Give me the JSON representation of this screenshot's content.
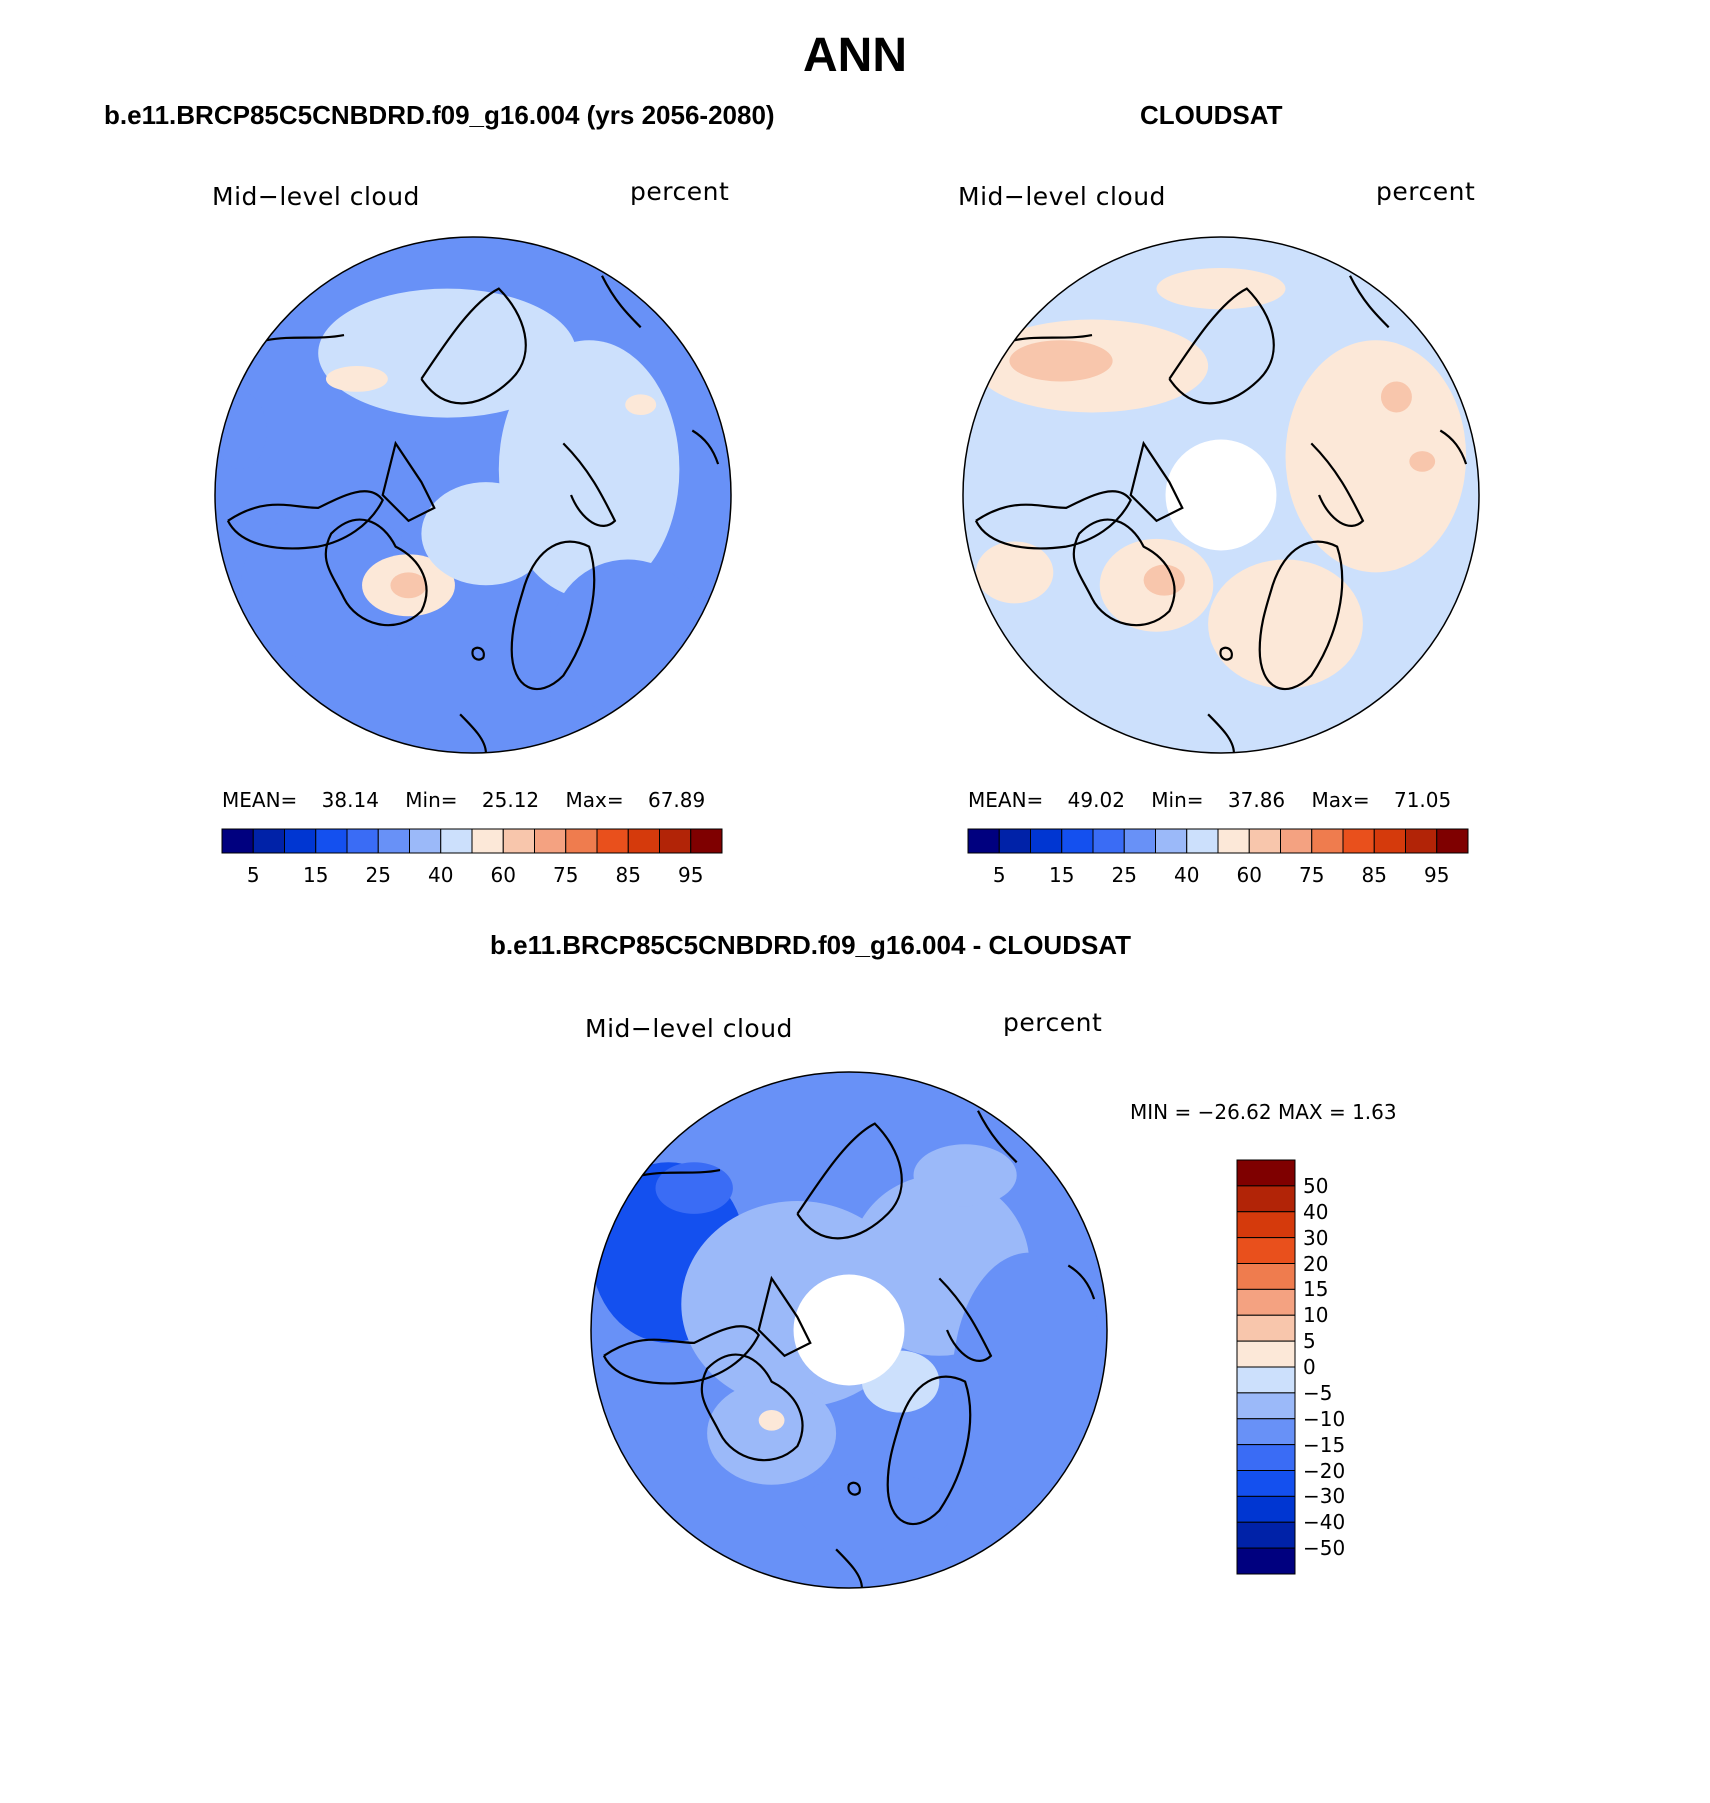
{
  "figure": {
    "title": "ANN"
  },
  "palette": {
    "full": [
      "#00007f",
      "#0022a8",
      "#0036d2",
      "#1450ef",
      "#3a6cf5",
      "#6891f7",
      "#9bb9f9",
      "#cce0fc",
      "#fce8d8",
      "#f8c6ac",
      "#f4a281",
      "#ef7c4e",
      "#e9501c",
      "#d53a0c",
      "#b22407",
      "#7f0000"
    ],
    "diff": [
      "#00007f",
      "#0022a8",
      "#0036d2",
      "#1450ef",
      "#3a6cf5",
      "#6891f7",
      "#9bb9f9",
      "#cce0fc",
      "#fce8d8",
      "#f8c6ac",
      "#f4a281",
      "#ef7c4e",
      "#e9501c",
      "#d53a0c",
      "#b22407",
      "#7f0000"
    ],
    "land_outline": "#000000"
  },
  "chart_data": [
    {
      "type": "heatmap",
      "projection": "polar-stereographic-north",
      "title": "b.e11.BRCP85C5CNBDRD.f09_g16.004 (yrs 2056-2080)",
      "left_label": "Mid−level cloud",
      "right_label": "percent",
      "stats": {
        "mean_label": "MEAN=",
        "mean": "38.14",
        "min_label": "Min=",
        "min": "25.12",
        "max_label": "Max=",
        "max": "67.89"
      },
      "colorbar": {
        "orientation": "horizontal",
        "tick_labels": [
          "5",
          "15",
          "25",
          "40",
          "60",
          "75",
          "85",
          "95"
        ],
        "bins": 16
      },
      "field_range": [
        25.12,
        67.89
      ],
      "has_missing_pole": false
    },
    {
      "type": "heatmap",
      "projection": "polar-stereographic-north",
      "title": "CLOUDSAT",
      "left_label": "Mid−level cloud",
      "right_label": "percent",
      "stats": {
        "mean_label": "MEAN=",
        "mean": "49.02",
        "min_label": "Min=",
        "min": "37.86",
        "max_label": "Max=",
        "max": "71.05"
      },
      "colorbar": {
        "orientation": "horizontal",
        "tick_labels": [
          "5",
          "15",
          "25",
          "40",
          "60",
          "75",
          "85",
          "95"
        ],
        "bins": 16
      },
      "field_range": [
        37.86,
        71.05
      ],
      "has_missing_pole": true
    },
    {
      "type": "heatmap",
      "projection": "polar-stereographic-north",
      "title": "b.e11.BRCP85C5CNBDRD.f09_g16.004 - CLOUDSAT",
      "left_label": "Mid−level cloud",
      "right_label": "percent",
      "stats": {
        "text": "MIN = −26.62  MAX =    1.63",
        "min": -26.62,
        "max": 1.63
      },
      "colorbar": {
        "orientation": "vertical",
        "tick_labels": [
          "50",
          "40",
          "30",
          "20",
          "15",
          "10",
          "5",
          "0",
          "−5",
          "−10",
          "−15",
          "−20",
          "−30",
          "−40",
          "−50"
        ],
        "bins": 16
      },
      "field_range": [
        -26.62,
        1.63
      ],
      "has_missing_pole": true
    }
  ]
}
